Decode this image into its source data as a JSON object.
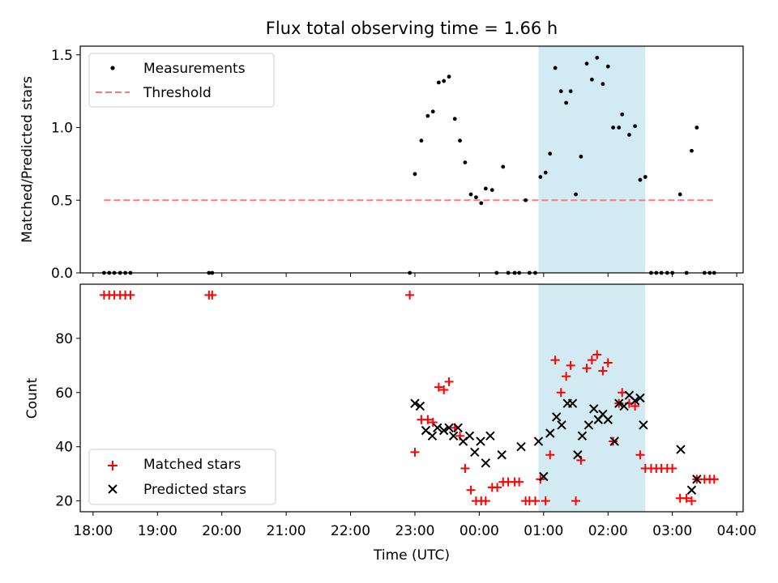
{
  "title": "Flux total observing time = 1.66 h",
  "colors": {
    "measurement": "#000000",
    "threshold": "#f77b7b",
    "matched": "#ff0000",
    "predicted": "#000000",
    "highlight": "#add8e6"
  },
  "chart_data": [
    {
      "type": "scatter",
      "panel": "top",
      "ylabel": "Matched/Predicted stars",
      "xlim_hours": [
        17.8,
        28.1
      ],
      "ylim": [
        0,
        1.56
      ],
      "yticks": [
        "0.0",
        "0.5",
        "1.0",
        "1.5"
      ],
      "highlight_span_hours": [
        24.92,
        26.58
      ],
      "legend": {
        "placement": "upper-left",
        "measurements_label": "Measurements",
        "threshold_label": "Threshold"
      },
      "threshold": {
        "value": 0.5,
        "x_range_hours": [
          18.17,
          27.63
        ]
      },
      "series": [
        {
          "name": "Measurements",
          "points": [
            [
              18.17,
              0
            ],
            [
              18.25,
              0
            ],
            [
              18.33,
              0
            ],
            [
              18.42,
              0
            ],
            [
              18.5,
              0
            ],
            [
              18.58,
              0
            ],
            [
              19.8,
              0
            ],
            [
              19.85,
              0
            ],
            [
              22.92,
              0
            ],
            [
              23.0,
              0.68
            ],
            [
              23.1,
              0.91
            ],
            [
              23.2,
              1.08
            ],
            [
              23.28,
              1.11
            ],
            [
              23.37,
              1.31
            ],
            [
              23.45,
              1.32
            ],
            [
              23.53,
              1.35
            ],
            [
              23.62,
              1.06
            ],
            [
              23.7,
              0.91
            ],
            [
              23.78,
              0.76
            ],
            [
              23.87,
              0.54
            ],
            [
              23.95,
              0.52
            ],
            [
              24.03,
              0.48
            ],
            [
              24.1,
              0.58
            ],
            [
              24.2,
              0.57
            ],
            [
              24.37,
              0.73
            ],
            [
              24.27,
              0
            ],
            [
              24.45,
              0
            ],
            [
              24.55,
              0
            ],
            [
              24.62,
              0
            ],
            [
              24.72,
              0.5
            ],
            [
              24.78,
              0
            ],
            [
              24.87,
              0
            ],
            [
              24.95,
              0.66
            ],
            [
              25.03,
              0.69
            ],
            [
              25.1,
              0.82
            ],
            [
              25.18,
              1.41
            ],
            [
              25.27,
              1.25
            ],
            [
              25.35,
              1.17
            ],
            [
              25.42,
              1.25
            ],
            [
              25.5,
              0.54
            ],
            [
              25.58,
              0.8
            ],
            [
              25.67,
              1.44
            ],
            [
              25.75,
              1.33
            ],
            [
              25.83,
              1.48
            ],
            [
              25.92,
              1.3
            ],
            [
              26.0,
              1.42
            ],
            [
              26.08,
              1.0
            ],
            [
              26.17,
              1.0
            ],
            [
              26.22,
              1.09
            ],
            [
              26.33,
              0.95
            ],
            [
              26.42,
              1.01
            ],
            [
              26.5,
              0.64
            ],
            [
              26.58,
              0.66
            ],
            [
              26.67,
              0
            ],
            [
              26.75,
              0
            ],
            [
              26.83,
              0
            ],
            [
              26.92,
              0
            ],
            [
              27.0,
              0
            ],
            [
              27.12,
              0.54
            ],
            [
              27.22,
              0
            ],
            [
              27.3,
              0.84
            ],
            [
              27.38,
              1.0
            ],
            [
              27.5,
              0
            ],
            [
              27.58,
              0
            ],
            [
              27.65,
              0
            ]
          ]
        }
      ]
    },
    {
      "type": "scatter",
      "panel": "bottom",
      "xlabel": "Time (UTC)",
      "ylabel": "Count",
      "xlim_hours": [
        17.8,
        28.1
      ],
      "ylim": [
        16,
        100
      ],
      "yticks": [
        "20",
        "40",
        "60",
        "80"
      ],
      "xticks": [
        "18:00",
        "19:00",
        "20:00",
        "21:00",
        "22:00",
        "23:00",
        "00:00",
        "01:00",
        "02:00",
        "03:00",
        "04:00"
      ],
      "highlight_span_hours": [
        24.92,
        26.58
      ],
      "legend": {
        "placement": "lower-left"
      },
      "series": [
        {
          "name": "Matched stars",
          "points": [
            [
              18.17,
              96
            ],
            [
              18.25,
              96
            ],
            [
              18.33,
              96
            ],
            [
              18.42,
              96
            ],
            [
              18.5,
              96
            ],
            [
              18.58,
              96
            ],
            [
              19.8,
              96
            ],
            [
              19.85,
              96
            ],
            [
              22.92,
              96
            ],
            [
              23.0,
              38
            ],
            [
              23.1,
              50
            ],
            [
              23.2,
              50
            ],
            [
              23.28,
              49
            ],
            [
              23.37,
              62
            ],
            [
              23.45,
              61
            ],
            [
              23.53,
              64
            ],
            [
              23.62,
              47
            ],
            [
              23.7,
              44
            ],
            [
              23.78,
              32
            ],
            [
              23.87,
              24
            ],
            [
              23.95,
              20
            ],
            [
              24.03,
              20
            ],
            [
              24.1,
              20
            ],
            [
              24.2,
              25
            ],
            [
              24.28,
              25
            ],
            [
              24.37,
              27
            ],
            [
              24.45,
              27
            ],
            [
              24.55,
              27
            ],
            [
              24.62,
              27
            ],
            [
              24.72,
              20
            ],
            [
              24.78,
              20
            ],
            [
              24.87,
              20
            ],
            [
              24.95,
              28
            ],
            [
              25.03,
              20
            ],
            [
              25.1,
              37
            ],
            [
              25.18,
              72
            ],
            [
              25.27,
              60
            ],
            [
              25.35,
              66
            ],
            [
              25.42,
              70
            ],
            [
              25.5,
              20
            ],
            [
              25.58,
              35
            ],
            [
              25.67,
              69
            ],
            [
              25.75,
              72
            ],
            [
              25.83,
              74
            ],
            [
              25.92,
              68
            ],
            [
              26.0,
              71
            ],
            [
              26.08,
              42
            ],
            [
              26.17,
              56
            ],
            [
              26.22,
              60
            ],
            [
              26.33,
              56
            ],
            [
              26.42,
              55
            ],
            [
              26.5,
              37
            ],
            [
              26.58,
              32
            ],
            [
              26.67,
              32
            ],
            [
              26.75,
              32
            ],
            [
              26.83,
              32
            ],
            [
              26.92,
              32
            ],
            [
              27.0,
              32
            ],
            [
              27.12,
              21
            ],
            [
              27.22,
              21
            ],
            [
              27.3,
              20
            ],
            [
              27.38,
              28
            ],
            [
              27.5,
              28
            ],
            [
              27.58,
              28
            ],
            [
              27.65,
              28
            ]
          ]
        },
        {
          "name": "Predicted stars",
          "points": [
            [
              23.0,
              56
            ],
            [
              23.08,
              55
            ],
            [
              23.17,
              46
            ],
            [
              23.27,
              44
            ],
            [
              23.35,
              47
            ],
            [
              23.45,
              46
            ],
            [
              23.53,
              47
            ],
            [
              23.6,
              44
            ],
            [
              23.67,
              47
            ],
            [
              23.75,
              42
            ],
            [
              23.85,
              44
            ],
            [
              23.93,
              38
            ],
            [
              24.02,
              42
            ],
            [
              24.1,
              34
            ],
            [
              24.17,
              44
            ],
            [
              24.35,
              37
            ],
            [
              24.65,
              40
            ],
            [
              24.92,
              42
            ],
            [
              25.0,
              29
            ],
            [
              25.1,
              45
            ],
            [
              25.2,
              51
            ],
            [
              25.28,
              48
            ],
            [
              25.37,
              56
            ],
            [
              25.45,
              56
            ],
            [
              25.53,
              37
            ],
            [
              25.6,
              44
            ],
            [
              25.7,
              48
            ],
            [
              25.78,
              54
            ],
            [
              25.85,
              50
            ],
            [
              25.92,
              52
            ],
            [
              26.0,
              50
            ],
            [
              26.1,
              42
            ],
            [
              26.17,
              56
            ],
            [
              26.25,
              55
            ],
            [
              26.33,
              59
            ],
            [
              26.42,
              57
            ],
            [
              26.5,
              58
            ],
            [
              26.55,
              48
            ],
            [
              27.13,
              39
            ],
            [
              27.3,
              24
            ],
            [
              27.38,
              28
            ]
          ]
        }
      ]
    }
  ]
}
